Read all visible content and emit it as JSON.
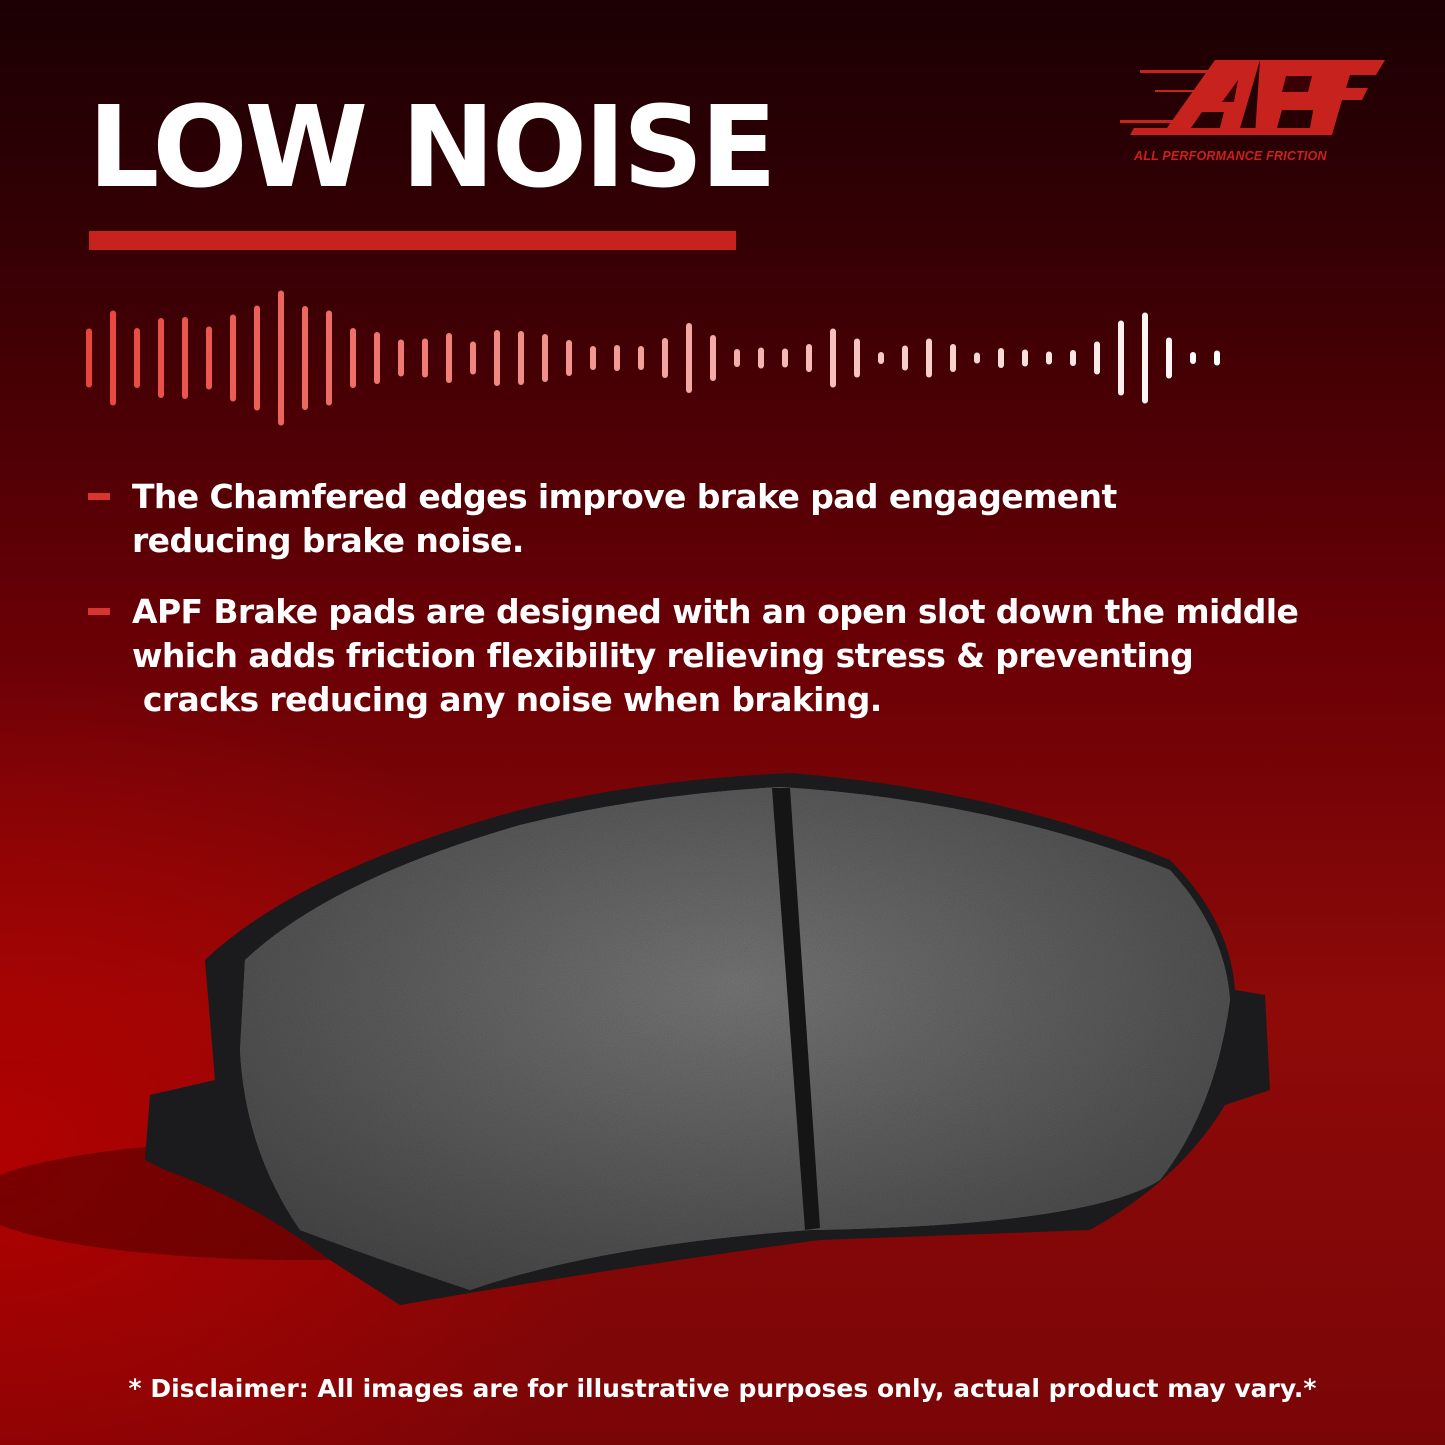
{
  "headline": "LOW NOISE",
  "logo": {
    "text": "APF",
    "tagline": "ALL PERFORMANCE FRICTION",
    "color": "#c8221f"
  },
  "bullets": [
    {
      "lines": [
        "The Chamfered edges improve brake pad engagement",
        "reducing brake noise."
      ]
    },
    {
      "lines": [
        "APF Brake pads are designed with an open slot down the middle",
        "which adds friction flexibility relieving stress & preventing",
        " cracks reducing any noise when braking."
      ]
    }
  ],
  "product_image": "brake-pad",
  "disclaimer": "* Disclaimer: All images are for illustrative purposes only, actual product may vary.*",
  "colors": {
    "accent": "#c8221f",
    "background_dark": "#1a0003",
    "background_red": "#a00000",
    "text": "#ffffff"
  }
}
